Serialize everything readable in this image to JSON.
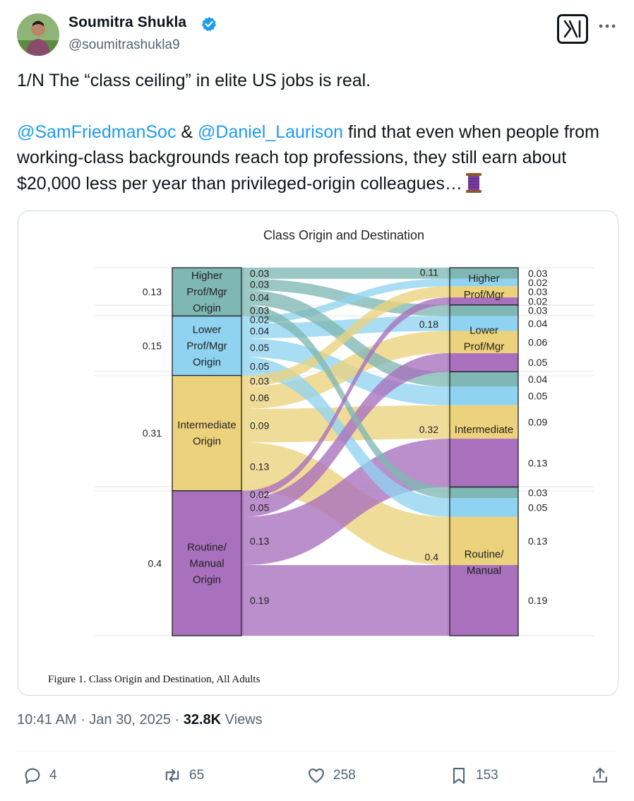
{
  "author": {
    "display_name": "Soumitra Shukla",
    "handle": "@soumitrashukla9",
    "verified": true,
    "avatar_icon": "user-avatar-photo"
  },
  "header_icons": {
    "logo": "x-logo-icon",
    "more": "more-options-icon"
  },
  "tweet": {
    "line1": "1/N The “class ceiling” in elite US jobs is real.",
    "mention1": "@SamFriedmanSoc",
    "amp": " & ",
    "mention2": "@Daniel_Laurison",
    "body": " find that even when people from working-class backgrounds reach top professions, they still earn about $20,000 less per year than privileged-origin colleagues…",
    "emoji": "thread-spool-emoji"
  },
  "colors": {
    "mention": "#1d9bf0",
    "higher": "#7fb7b4",
    "lower": "#8fd3f0",
    "intermediate": "#ecd27c",
    "routine": "#a870bd"
  },
  "chart_data": {
    "type": "sankey",
    "title": "Class Origin and Destination",
    "caption": "Figure 1. Class Origin and Destination, All Adults",
    "origins": [
      {
        "label": "Higher Prof/Mgr Origin",
        "lines": [
          "Higher",
          "Prof/Mgr",
          "Origin"
        ],
        "share": "0.13",
        "color": "#7fb7b4"
      },
      {
        "label": "Lower Prof/Mgr Origin",
        "lines": [
          "Lower",
          "Prof/Mgr",
          "Origin"
        ],
        "share": "0.15",
        "color": "#8fd3f0"
      },
      {
        "label": "Intermediate Origin",
        "lines": [
          "Intermediate",
          "Origin"
        ],
        "share": "0.31",
        "color": "#ecd27c"
      },
      {
        "label": "Routine/ Manual Origin",
        "lines": [
          "Routine/",
          "Manual",
          "Origin"
        ],
        "share": "0.4",
        "color": "#a870bd"
      }
    ],
    "destinations": [
      {
        "label": "Higher Prof/Mgr",
        "lines": [
          "Higher",
          "Prof/Mgr"
        ],
        "share": "0.11"
      },
      {
        "label": "Lower Prof/Mgr",
        "lines": [
          "Lower",
          "Prof/Mgr"
        ],
        "share": "0.18"
      },
      {
        "label": "Intermediate",
        "lines": [
          "Intermediate"
        ],
        "share": "0.32"
      },
      {
        "label": "Routine/ Manual",
        "lines": [
          "Routine/",
          "Manual"
        ],
        "share": "0.4"
      }
    ],
    "flows": [
      {
        "origin": 0,
        "dest": 0,
        "value": 0.03,
        "origin_label": "0.03",
        "dest_label": "0.03"
      },
      {
        "origin": 0,
        "dest": 1,
        "value": 0.03,
        "origin_label": "0.03",
        "dest_label": "0.03"
      },
      {
        "origin": 0,
        "dest": 2,
        "value": 0.04,
        "origin_label": "0.04",
        "dest_label": "0.04"
      },
      {
        "origin": 0,
        "dest": 3,
        "value": 0.03,
        "origin_label": "0.03",
        "dest_label": "0.03"
      },
      {
        "origin": 1,
        "dest": 0,
        "value": 0.02,
        "origin_label": "0.02",
        "dest_label": "0.02"
      },
      {
        "origin": 1,
        "dest": 1,
        "value": 0.04,
        "origin_label": "0.04",
        "dest_label": "0.04"
      },
      {
        "origin": 1,
        "dest": 2,
        "value": 0.05,
        "origin_label": "0.05",
        "dest_label": "0.05"
      },
      {
        "origin": 1,
        "dest": 3,
        "value": 0.05,
        "origin_label": "0.05",
        "dest_label": "0.05"
      },
      {
        "origin": 2,
        "dest": 0,
        "value": 0.03,
        "origin_label": "0.03",
        "dest_label": "0.03"
      },
      {
        "origin": 2,
        "dest": 1,
        "value": 0.06,
        "origin_label": "0.06",
        "dest_label": "0.06"
      },
      {
        "origin": 2,
        "dest": 2,
        "value": 0.09,
        "origin_label": "0.09",
        "dest_label": "0.09"
      },
      {
        "origin": 2,
        "dest": 3,
        "value": 0.13,
        "origin_label": "0.13",
        "dest_label": "0.13"
      },
      {
        "origin": 3,
        "dest": 0,
        "value": 0.02,
        "origin_label": "0.02",
        "dest_label": "0.02"
      },
      {
        "origin": 3,
        "dest": 1,
        "value": 0.05,
        "origin_label": "0.05",
        "dest_label": "0.05"
      },
      {
        "origin": 3,
        "dest": 2,
        "value": 0.13,
        "origin_label": "0.13",
        "dest_label": "0.13"
      },
      {
        "origin": 3,
        "dest": 3,
        "value": 0.19,
        "origin_label": "0.19",
        "dest_label": "0.19"
      }
    ]
  },
  "footer": {
    "time": "10:41 AM",
    "sep1": " · ",
    "date": "Jan 30, 2025",
    "sep2": " · ",
    "views_count": "32.8K",
    "views_label": " Views"
  },
  "actions": {
    "replies": "4",
    "reposts": "65",
    "likes": "258",
    "bookmarks": "153"
  }
}
